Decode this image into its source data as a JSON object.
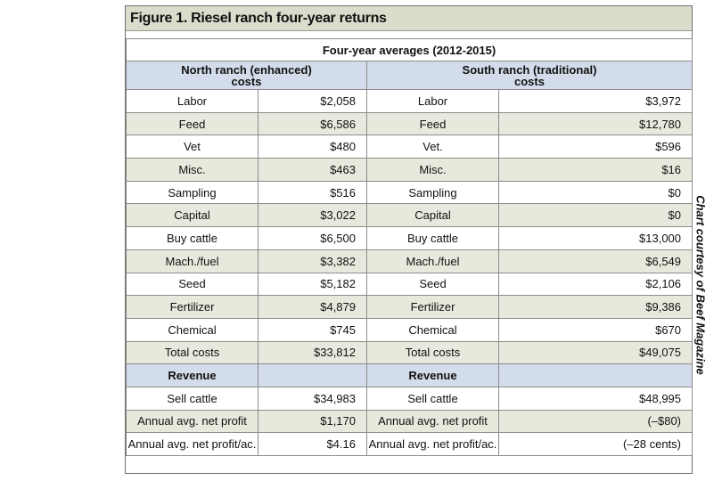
{
  "figure": {
    "title": "Figure 1. Riesel ranch four-year returns",
    "subtitle": "Four-year averages (2012-2015)",
    "north_header_line1": "North ranch (enhanced)",
    "north_header_line2": "costs",
    "south_header_line1": "South ranch (traditional)",
    "south_header_line2": "costs",
    "cost_rows": [
      {
        "north_label": "Labor",
        "north_value": "$2,058",
        "south_label": "Labor",
        "south_value": "$3,972"
      },
      {
        "north_label": "Feed",
        "north_value": "$6,586",
        "south_label": "Feed",
        "south_value": "$12,780"
      },
      {
        "north_label": "Vet",
        "north_value": "$480",
        "south_label": "Vet.",
        "south_value": "$596"
      },
      {
        "north_label": "Misc.",
        "north_value": "$463",
        "south_label": "Misc.",
        "south_value": "$16"
      },
      {
        "north_label": "Sampling",
        "north_value": "$516",
        "south_label": "Sampling",
        "south_value": "$0"
      },
      {
        "north_label": "Capital",
        "north_value": "$3,022",
        "south_label": "Capital",
        "south_value": "$0"
      },
      {
        "north_label": "Buy cattle",
        "north_value": "$6,500",
        "south_label": "Buy cattle",
        "south_value": "$13,000"
      },
      {
        "north_label": "Mach./fuel",
        "north_value": "$3,382",
        "south_label": "Mach./fuel",
        "south_value": "$6,549"
      },
      {
        "north_label": "Seed",
        "north_value": "$5,182",
        "south_label": "Seed",
        "south_value": "$2,106"
      },
      {
        "north_label": "Fertilizer",
        "north_value": "$4,879",
        "south_label": "Fertilizer",
        "south_value": "$9,386"
      },
      {
        "north_label": "Chemical",
        "north_value": "$745",
        "south_label": "Chemical",
        "south_value": "$670"
      },
      {
        "north_label": "Total costs",
        "north_value": "$33,812",
        "south_label": "Total costs",
        "south_value": "$49,075"
      }
    ],
    "revenue_label_north": "Revenue",
    "revenue_label_south": "Revenue",
    "revenue_rows": [
      {
        "north_label": "Sell cattle",
        "north_value": "$34,983",
        "south_label": "Sell cattle",
        "south_value": "$48,995"
      },
      {
        "north_label": "Annual avg. net profit",
        "north_value": "$1,170",
        "south_label": "Annual avg. net profit",
        "south_value": "(–$80)"
      },
      {
        "north_label": "Annual avg. net profit/ac.",
        "north_value": "$4.16",
        "south_label": "Annual avg. net profit/ac.",
        "south_value": "(–28 cents)"
      }
    ],
    "credit": "Chart courtesy of Beef Magazine"
  }
}
